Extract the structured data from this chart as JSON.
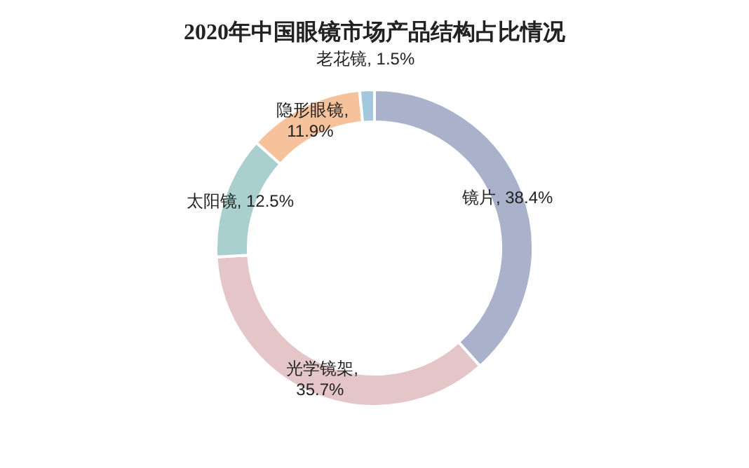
{
  "chart_data": {
    "type": "donut",
    "title": "2020年中国眼镜市场产品结构占比情况",
    "categories": [
      "镜片",
      "光学镜架",
      "太阳镜",
      "隐形眼镜",
      "老花镜"
    ],
    "values": [
      38.4,
      35.7,
      12.5,
      11.9,
      1.5
    ],
    "colors": [
      "#aab1ca",
      "#e4c6c8",
      "#a9cfcf",
      "#f5c29c",
      "#a3c8de"
    ],
    "value_labels": [
      ", 38.4%",
      ", 35.7%",
      ", 12.5%",
      ", 11.9%",
      ", 1.5%"
    ]
  }
}
